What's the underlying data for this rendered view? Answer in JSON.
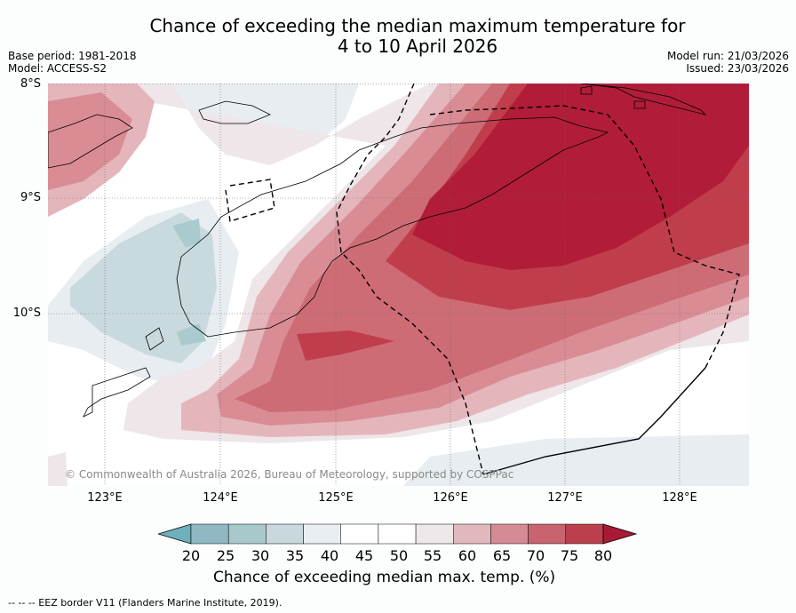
{
  "title_line1": "Chance of exceeding the median maximum temperature for",
  "title_line2": "4 to 10 April 2026",
  "base_period": "Base period: 1981-2018",
  "model": "Model: ACCESS-S2",
  "model_run": "Model run: 21/03/2026",
  "issued": "Issued: 23/03/2026",
  "lat_labels": [
    "8°S",
    "9°S",
    "10°S"
  ],
  "lon_labels": [
    "123°E",
    "124°E",
    "125°E",
    "126°E",
    "127°E",
    "128°E"
  ],
  "copyright": "© Commonwealth of Australia 2026, Bureau of Meteorology, supported by COSPPac",
  "colorbar": {
    "ticks": [
      "20",
      "25",
      "30",
      "35",
      "40",
      "45",
      "50",
      "55",
      "60",
      "65",
      "70",
      "75",
      "80"
    ],
    "label": "Chance of exceeding median max. temp. (%)",
    "colors": [
      "#6fb0bd",
      "#8fb8c4",
      "#a9c8cc",
      "#c8d8dc",
      "#e8eef1",
      "#ffffff",
      "#ffffff",
      "#efe8ea",
      "#e2b8bf",
      "#d48b94",
      "#c8646f",
      "#bb3f4d",
      "#a81a33"
    ]
  },
  "footnote": "--  --  -- EEZ border V11 (Flanders Marine Institute, 2019).",
  "colors": {
    "very_high": "#b11c38",
    "high": "#c03e4c",
    "mid_high": "#ce6c76",
    "moderate": "#d98c94",
    "slight": "#e4b6bc",
    "faint": "#eee6e8",
    "neutral": "#ffffff",
    "cool_faint": "#e7edf0",
    "cool": "#c9dade",
    "cooler": "#a9cbd0"
  }
}
